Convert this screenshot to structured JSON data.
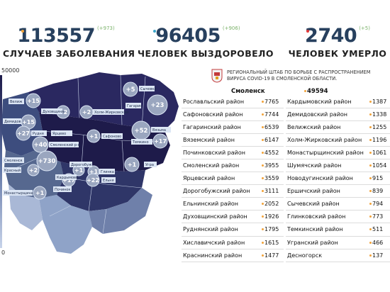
{
  "summary": {
    "cases": {
      "value": "113557",
      "delta": "(+973)",
      "caption": "СЛУЧАЕВ ЗАБОЛЕВАНИЯ",
      "dot_color": "#f2a33a"
    },
    "recovered": {
      "value": "96405",
      "delta": "(+906)",
      "caption": "ЧЕЛОВЕК ВЫЗДОРОВЕЛО",
      "dot_color": "#3aa5c9"
    },
    "deaths": {
      "value": "2740",
      "delta": "(+5)",
      "caption": "ЧЕЛОВЕК УМЕРЛО",
      "dot_color": "#e23a3a"
    }
  },
  "legend": {
    "max": "50000",
    "min": "0"
  },
  "headquarters": {
    "line1": "РЕГИОНАЛЬНЫЙ ШТАБ ПО БОРЬБЕ С РАСПРОСТРАНЕНИЕМ",
    "line2": "ВИРУСА COVID-19 В СМОЛЕНСКОЙ ОБЛАСТИ."
  },
  "capital": {
    "name": "Смоленск",
    "value": "49594"
  },
  "districts_left": [
    {
      "name": "Рославльский район",
      "value": "7765"
    },
    {
      "name": "Сафоновский район",
      "value": "7744"
    },
    {
      "name": "Гагаринский район",
      "value": "6539"
    },
    {
      "name": "Вяземский район",
      "value": "6147"
    },
    {
      "name": "Починковский район",
      "value": "4552"
    },
    {
      "name": "Смоленский район",
      "value": "3955"
    },
    {
      "name": "Ярцевский район",
      "value": "3559"
    },
    {
      "name": "Дорогобужский район",
      "value": "3111"
    },
    {
      "name": "Ельнинский район",
      "value": "2052"
    },
    {
      "name": "Духовщинский район",
      "value": "1926"
    },
    {
      "name": "Руднянский район",
      "value": "1795"
    },
    {
      "name": "Хиславичский район",
      "value": "1615"
    },
    {
      "name": "Краснинский район",
      "value": "1477"
    }
  ],
  "districts_right": [
    {
      "name": "Кардымовский район",
      "value": "1387"
    },
    {
      "name": "Демидовский район",
      "value": "1338"
    },
    {
      "name": "Велижский район",
      "value": "1255"
    },
    {
      "name": "Холм-Жирковский район",
      "value": "1196"
    },
    {
      "name": "Монастырщинский район",
      "value": "1061"
    },
    {
      "name": "Шумячский район",
      "value": "1054"
    },
    {
      "name": "Новодугинский район",
      "value": "915"
    },
    {
      "name": "Ершичский район",
      "value": "839"
    },
    {
      "name": "Сычевский район",
      "value": "794"
    },
    {
      "name": "Глинковский район",
      "value": "773"
    },
    {
      "name": "Темкинский район",
      "value": "511"
    },
    {
      "name": "Угранский район",
      "value": "466"
    },
    {
      "name": "Десногорск",
      "value": "137"
    }
  ],
  "map_labels": {
    "velizh": "Велиж",
    "dukhovshchina": "Духовщина",
    "kholm": "Холм-Жирковский",
    "sychevka": "Сычевка",
    "gagarin": "Гагарин",
    "demidov": "Демидов",
    "rudnya": "Рудня",
    "yartsevo": "Ярцево",
    "safonovo": "Сафоново",
    "vyazma": "Вязьма",
    "temkino": "Темкино",
    "smolensk": "Смоленск",
    "smolensk_district": "Смоленский р-н",
    "krasny": "Красный",
    "kardymovo": "Кардымово",
    "dorogobuzh": "Дорогобуж",
    "ugra": "Угра",
    "glinka": "Глинка",
    "pochinok": "Починок",
    "yelnya": "Ельня",
    "monastyrshchina": "Монастырщина"
  },
  "map_bubbles": {
    "velizh": "+15",
    "dukhovshchina": "+2",
    "kholm": "+2",
    "sychevka": "+5",
    "gagarin": "+23",
    "demidov": "+15",
    "rudnya": "+27",
    "yartsevo": "+1",
    "vyazma": "+52",
    "temkino": "+17",
    "smolensk_district": "+40",
    "smolensk": "+730",
    "krasny": "+2",
    "kardymovo": "+1",
    "ugra": "+1",
    "glinka": "+1",
    "pochinok": "+17",
    "yelnya": "+22",
    "monastyrshchina": "+1"
  },
  "colors": {
    "region_dark": "#1e1b4a",
    "region_mid": "#3d4d7e",
    "region_light": "#8fa3c8",
    "bubble": "#9aa6bf",
    "label_box": "#dce6f5",
    "accent_orange": "#f2a33a"
  }
}
